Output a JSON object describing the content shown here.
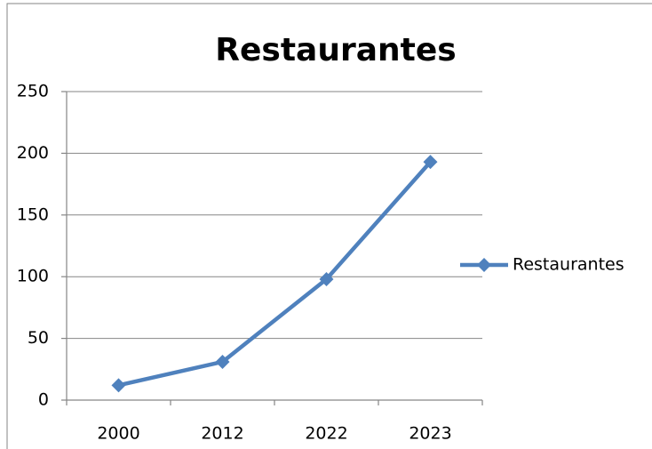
{
  "chart_data": {
    "type": "line",
    "title": "Restaurantes",
    "categories": [
      "2000",
      "2012",
      "2022",
      "2023"
    ],
    "series": [
      {
        "name": "Restaurantes",
        "color": "#4f81bd",
        "values": [
          12,
          31,
          98,
          193
        ]
      }
    ],
    "ylim": [
      0,
      250
    ],
    "yticks": [
      0,
      50,
      100,
      150,
      200,
      250
    ],
    "grid": true,
    "legend": "right"
  }
}
